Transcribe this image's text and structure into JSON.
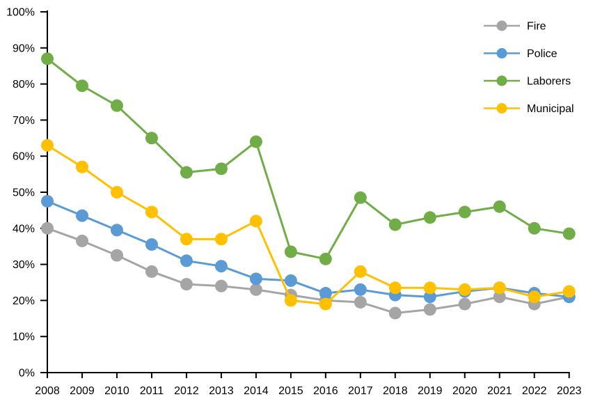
{
  "chart_data": {
    "type": "line",
    "title": "",
    "x_categories": [
      "2008",
      "2009",
      "2010",
      "2011",
      "2012",
      "2013",
      "2014",
      "2015",
      "2016",
      "2017",
      "2018",
      "2019",
      "2020",
      "2021",
      "2022",
      "2023"
    ],
    "series": [
      {
        "name": "Fire",
        "color": "#A5A5A5",
        "values": [
          40,
          36.5,
          32.5,
          28,
          24.5,
          24,
          23,
          21.5,
          20,
          19.5,
          16.5,
          17.5,
          19,
          21,
          19,
          21
        ]
      },
      {
        "name": "Police",
        "color": "#5B9BD5",
        "values": [
          47.5,
          43.5,
          39.5,
          35.5,
          31,
          29.5,
          26,
          25.5,
          22,
          23,
          21.5,
          21,
          22.5,
          23.5,
          22,
          21
        ]
      },
      {
        "name": "Laborers",
        "color": "#70AD47",
        "values": [
          87,
          79.5,
          74,
          65,
          55.5,
          56.5,
          64,
          33.5,
          31.5,
          48.5,
          41,
          43,
          44.5,
          46,
          40,
          38.5
        ]
      },
      {
        "name": "Municipal",
        "color": "#FFC000",
        "values": [
          63,
          57,
          50,
          44.5,
          37,
          37,
          42,
          20,
          19,
          28,
          23.5,
          23.5,
          23,
          23.5,
          21,
          22.5
        ]
      }
    ],
    "ylim": [
      0,
      100
    ],
    "ytick_step": 10,
    "y_tick_labels": [
      "0%",
      "10%",
      "20%",
      "30%",
      "40%",
      "50%",
      "60%",
      "70%",
      "80%",
      "90%",
      "100%"
    ],
    "xlabel": "",
    "ylabel": "",
    "grid": false,
    "legend_position": "top-right",
    "axis_color": "#000000",
    "background_color": "#FFFFFF",
    "marker": "circle"
  }
}
